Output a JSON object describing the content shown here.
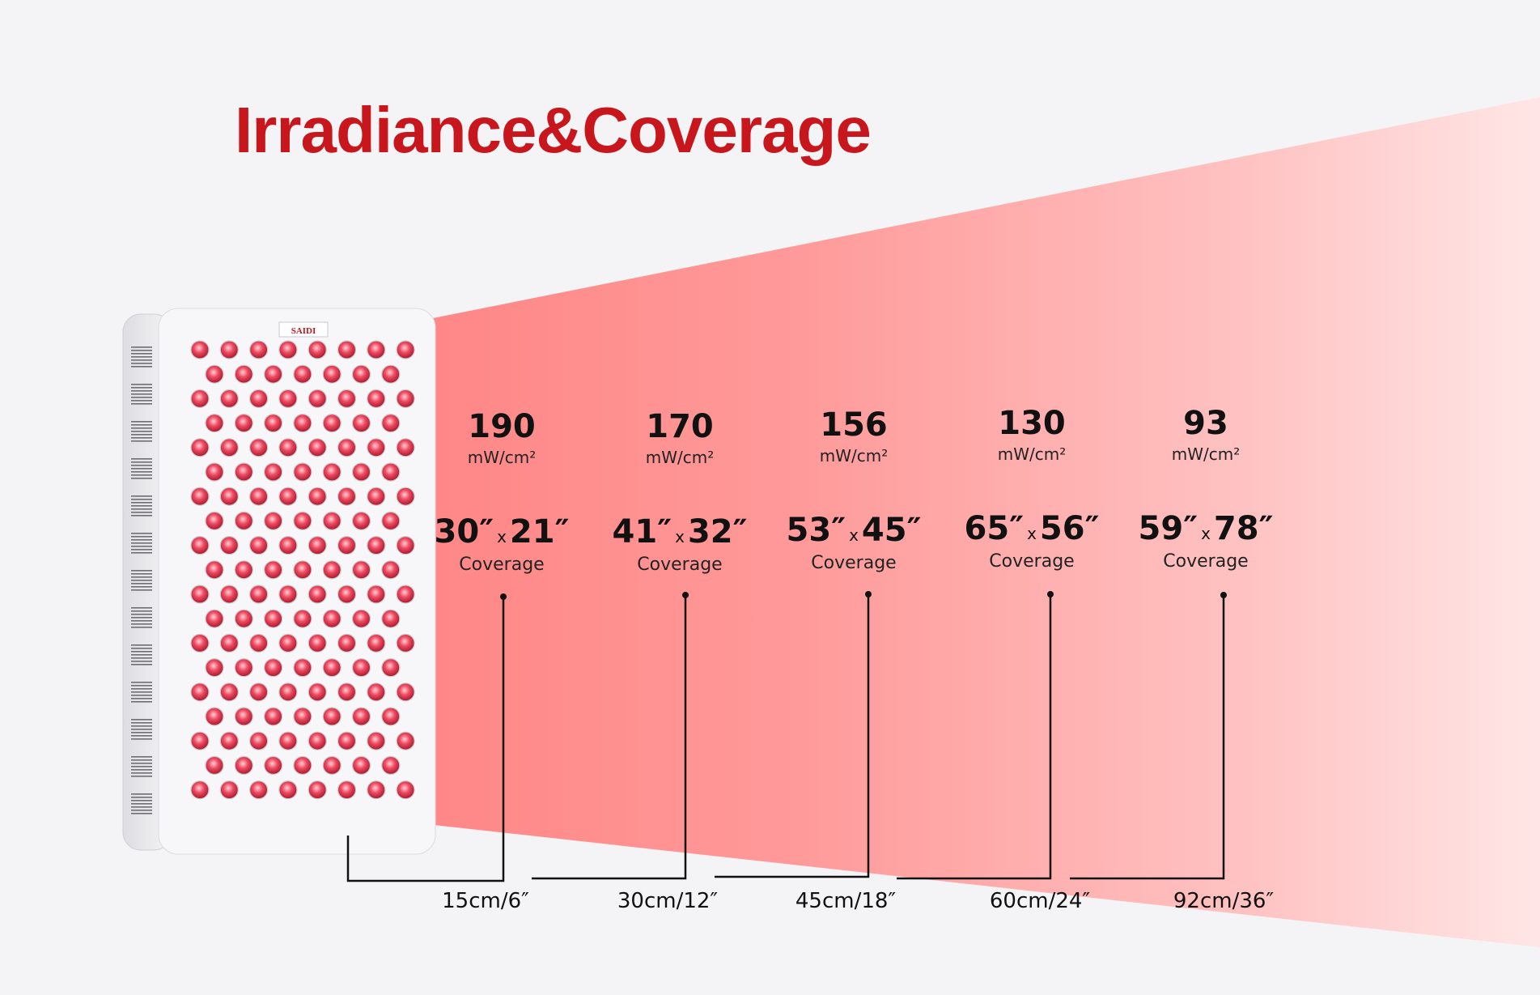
{
  "title": "Irradiance&Coverage",
  "panel": {
    "brand": "SAIDI"
  },
  "columns": [
    {
      "irradiance": "190",
      "unit": "mW/cm²",
      "coverage_w": "30″",
      "x": "x",
      "coverage_h": "21″",
      "coverage_label": "Coverage",
      "distance": "15cm/6″"
    },
    {
      "irradiance": "170",
      "unit": "mW/cm²",
      "coverage_w": "41″",
      "x": "x",
      "coverage_h": "32″",
      "coverage_label": "Coverage",
      "distance": "30cm/12″"
    },
    {
      "irradiance": "156",
      "unit": "mW/cm²",
      "coverage_w": "53″",
      "x": "x",
      "coverage_h": "45″",
      "coverage_label": "Coverage",
      "distance": "45cm/18″"
    },
    {
      "irradiance": "130",
      "unit": "mW/cm²",
      "coverage_w": "65″",
      "x": "x",
      "coverage_h": "56″",
      "coverage_label": "Coverage",
      "distance": "60cm/24″"
    },
    {
      "irradiance": "93",
      "unit": "mW/cm²",
      "coverage_w": "59″",
      "x": "x",
      "coverage_h": "78″",
      "coverage_label": "Coverage",
      "distance": "92cm/36″"
    }
  ],
  "colors": {
    "title": "#c8161d",
    "beam_start": "#ff8585",
    "beam_end": "#ffdcdc",
    "led": "#e8445a"
  }
}
